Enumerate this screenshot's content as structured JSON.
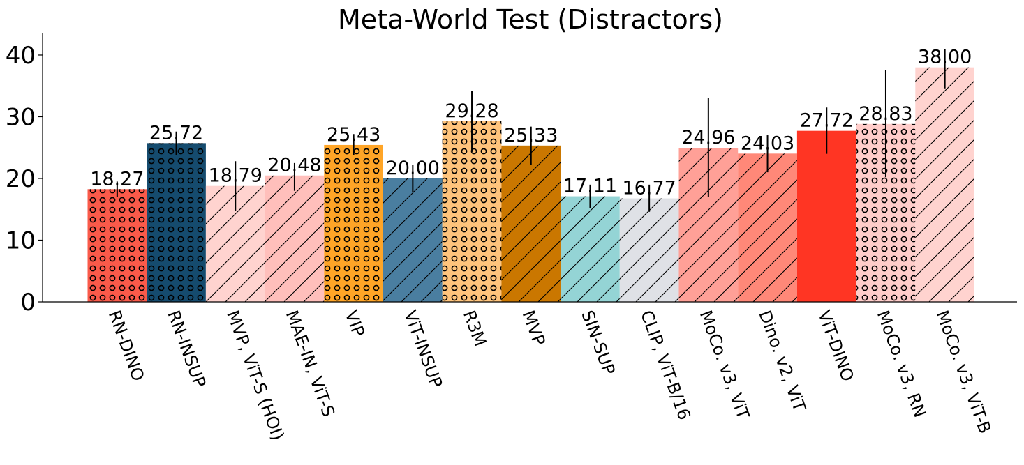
{
  "chart_data": {
    "type": "bar",
    "title": "Meta-World Test (Distractors)",
    "xlabel": "",
    "ylabel": "",
    "ylim": [
      0,
      43.5
    ],
    "yticks": [
      0,
      10,
      20,
      30,
      40
    ],
    "grid": false,
    "categories": [
      "RN-DINO",
      "RN-INSUP",
      "MVP, ViT-S (HOI)",
      "MAE-IN, ViT-S",
      "VIP",
      "ViT-INSUP",
      "R3M",
      "MVP",
      "SIN-SUP",
      "CLIP, ViT-B/16",
      "MoCo. v3, ViT",
      "Dino. v2, ViT",
      "ViT-DINO",
      "MoCo. v3, RN",
      "MoCo. v3, ViT-B"
    ],
    "values": [
      18.27,
      25.72,
      18.79,
      20.48,
      25.43,
      20.0,
      29.28,
      25.33,
      17.11,
      16.77,
      24.96,
      24.03,
      27.72,
      28.83,
      38.0
    ],
    "value_labels": [
      "18.27",
      "25.72",
      "18.79",
      "20.48",
      "25.43",
      "20.00",
      "29.28",
      "25.33",
      "17.11",
      "16.77",
      "24.96",
      "24.03",
      "27.72",
      "28.83",
      "38.00"
    ],
    "error": [
      [
        17.0,
        19.5
      ],
      [
        23.8,
        27.6
      ],
      [
        14.7,
        22.8
      ],
      [
        18.0,
        22.5
      ],
      [
        23.8,
        27.2
      ],
      [
        17.8,
        22.2
      ],
      [
        24.3,
        34.2
      ],
      [
        22.2,
        28.4
      ],
      [
        15.2,
        19.0
      ],
      [
        14.6,
        19.0
      ],
      [
        17.0,
        33.0
      ],
      [
        21.0,
        27.0
      ],
      [
        24.0,
        31.5
      ],
      [
        20.2,
        37.6
      ],
      [
        34.6,
        41.0
      ]
    ],
    "colors": [
      "#fa5a4a",
      "#154b6e",
      "#ffd3cf",
      "#ffbfbb",
      "#ffa527",
      "#4a7ea0",
      "#ffc47c",
      "#ca7700",
      "#94d4d5",
      "#dfe1e6",
      "#ffa097",
      "#ff8878",
      "#ff3523",
      "#ffcdca",
      "#ffd3cf"
    ],
    "patterns": [
      "circles",
      "circles",
      "hatch",
      "hatch",
      "circles",
      "hatch",
      "circles",
      "hatch",
      "hatch",
      "hatch",
      "hatch",
      "hatch",
      "none",
      "circles",
      "hatch"
    ]
  }
}
